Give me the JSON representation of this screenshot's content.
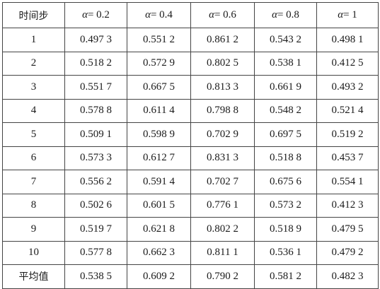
{
  "table": {
    "header": {
      "first": "时间步",
      "alpha_symbol": "α",
      "alphas": [
        "= 0.2",
        "= 0.4",
        "= 0.6",
        "= 0.8",
        "= 1"
      ]
    },
    "rows": [
      {
        "label": "1",
        "values": [
          "0.497 3",
          "0.551 2",
          "0.861 2",
          "0.543 2",
          "0.498 1"
        ]
      },
      {
        "label": "2",
        "values": [
          "0.518 2",
          "0.572 9",
          "0.802 5",
          "0.538 1",
          "0.412 5"
        ]
      },
      {
        "label": "3",
        "values": [
          "0.551 7",
          "0.667 5",
          "0.813 3",
          "0.661 9",
          "0.493 2"
        ]
      },
      {
        "label": "4",
        "values": [
          "0.578 8",
          "0.611 4",
          "0.798 8",
          "0.548 2",
          "0.521 4"
        ]
      },
      {
        "label": "5",
        "values": [
          "0.509 1",
          "0.598 9",
          "0.702 9",
          "0.697 5",
          "0.519 2"
        ]
      },
      {
        "label": "6",
        "values": [
          "0.573 3",
          "0.612 7",
          "0.831 3",
          "0.518 8",
          "0.453 7"
        ]
      },
      {
        "label": "7",
        "values": [
          "0.556 2",
          "0.591 4",
          "0.702 7",
          "0.675 6",
          "0.554 1"
        ]
      },
      {
        "label": "8",
        "values": [
          "0.502 6",
          "0.601 5",
          "0.776 1",
          "0.573 2",
          "0.412 3"
        ]
      },
      {
        "label": "9",
        "values": [
          "0.519 7",
          "0.621 8",
          "0.802 2",
          "0.518 9",
          "0.479 5"
        ]
      },
      {
        "label": "10",
        "values": [
          "0.577 8",
          "0.662 3",
          "0.811 1",
          "0.536 1",
          "0.479 2"
        ]
      }
    ],
    "average": {
      "label": "平均值",
      "values": [
        "0.538 5",
        "0.609 2",
        "0.790 2",
        "0.581 2",
        "0.482 3"
      ]
    }
  }
}
